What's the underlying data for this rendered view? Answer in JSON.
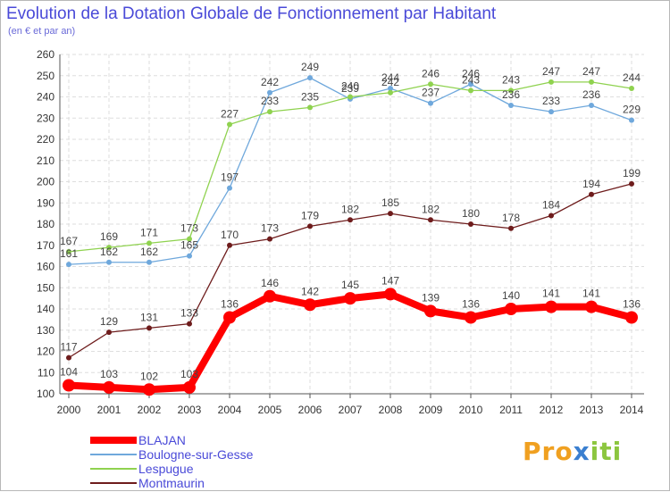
{
  "chart_data": {
    "type": "line",
    "title": "Evolution de la Dotation Globale de Fonctionnement par Habitant",
    "subtitle": "(en € et par an)",
    "x": [
      "2000",
      "2001",
      "2002",
      "2003",
      "2004",
      "2005",
      "2006",
      "2007",
      "2008",
      "2009",
      "2010",
      "2011",
      "2012",
      "2013",
      "2014"
    ],
    "ylim": [
      100,
      260
    ],
    "yticks": [
      "100",
      "110",
      "120",
      "130",
      "140",
      "150",
      "160",
      "170",
      "180",
      "190",
      "200",
      "210",
      "220",
      "230",
      "240",
      "250",
      "260"
    ],
    "series": [
      {
        "name": "BLAJAN",
        "color": "#ff0000",
        "values": [
          104,
          103,
          102,
          103,
          136,
          146,
          142,
          145,
          147,
          139,
          136,
          140,
          141,
          141,
          136
        ],
        "labels": [
          "104",
          "103",
          "102",
          "103",
          "136",
          "146",
          "142",
          "145",
          "147",
          "139",
          "136",
          "140",
          "141",
          "141",
          "136"
        ]
      },
      {
        "name": "Boulogne-sur-Gesse",
        "color": "#6fa8dc",
        "values": [
          161,
          162,
          162,
          165,
          197,
          242,
          249,
          239,
          244,
          237,
          246,
          236,
          233,
          236,
          229
        ],
        "labels": [
          "161",
          "162",
          "162",
          "165",
          "197",
          "242",
          "249",
          "239",
          "244",
          "237",
          "246",
          "236",
          "233",
          "236",
          "229"
        ]
      },
      {
        "name": "Lespugue",
        "color": "#8fd24f",
        "values": [
          167,
          169,
          171,
          173,
          227,
          233,
          235,
          240,
          242,
          246,
          243,
          243,
          247,
          247,
          244
        ],
        "labels": [
          "167",
          "169",
          "171",
          "173",
          "227",
          "233",
          "235",
          "240",
          "242",
          "246",
          "243",
          "243",
          "247",
          "247",
          "244"
        ]
      },
      {
        "name": "Montmaurin",
        "color": "#6e1c1c",
        "values": [
          117,
          129,
          131,
          133,
          170,
          173,
          179,
          182,
          185,
          182,
          180,
          178,
          184,
          194,
          199
        ],
        "labels": [
          "117",
          "129",
          "131",
          "133",
          "170",
          "173",
          "179",
          "182",
          "185",
          "182",
          "180",
          "178",
          "184",
          "194",
          "199"
        ]
      }
    ]
  },
  "logo": {
    "p1": "Pro",
    "p2": "x",
    "p3": "iti"
  }
}
